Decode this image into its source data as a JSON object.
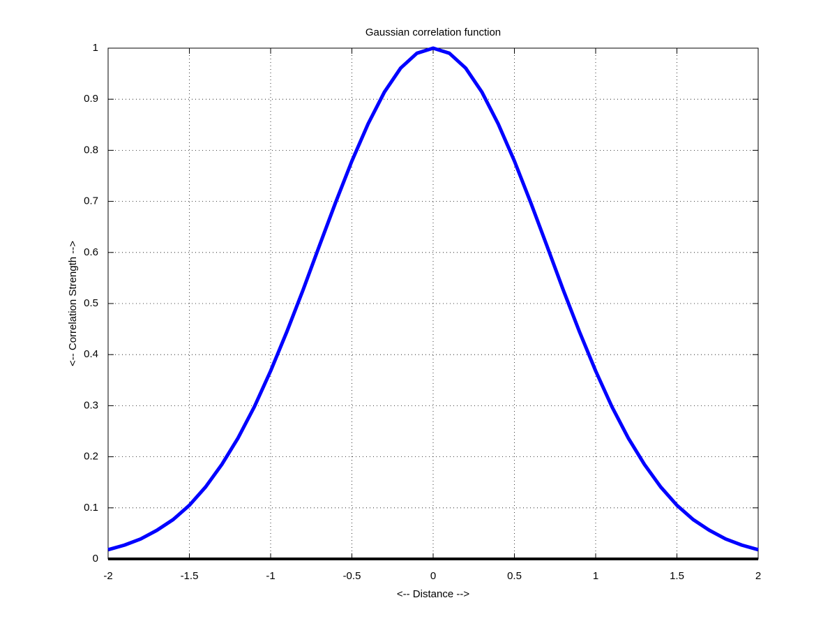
{
  "chart_data": {
    "type": "line",
    "title": "Gaussian correlation function",
    "x_label": "<-- Distance -->",
    "y_label": "<-- Correlation Strength -->",
    "x": [
      -2,
      -1.9,
      -1.8,
      -1.7,
      -1.6,
      -1.5,
      -1.4,
      -1.3,
      -1.2,
      -1.1,
      -1,
      -0.9,
      -0.8,
      -0.7,
      -0.6,
      -0.5,
      -0.4,
      -0.3,
      -0.2,
      -0.1,
      0,
      0.1,
      0.2,
      0.3,
      0.4,
      0.5,
      0.6,
      0.7,
      0.8,
      0.9,
      1,
      1.1,
      1.2,
      1.3,
      1.4,
      1.5,
      1.6,
      1.7,
      1.8,
      1.9,
      2
    ],
    "series": [
      {
        "color": "#0000ff",
        "values": [
          0.018,
          0.027,
          0.039,
          0.056,
          0.077,
          0.105,
          0.141,
          0.185,
          0.237,
          0.298,
          0.368,
          0.445,
          0.527,
          0.613,
          0.698,
          0.779,
          0.852,
          0.914,
          0.961,
          0.99,
          1,
          0.99,
          0.961,
          0.914,
          0.852,
          0.779,
          0.698,
          0.613,
          0.527,
          0.445,
          0.368,
          0.298,
          0.237,
          0.185,
          0.141,
          0.105,
          0.077,
          0.056,
          0.039,
          0.027,
          0.018
        ]
      }
    ],
    "xlim": [
      -2,
      2
    ],
    "xticks": [
      -2,
      -1.5,
      -1,
      -0.5,
      0,
      0.5,
      1,
      1.5,
      2
    ],
    "ylim": [
      0,
      1
    ],
    "yticks": [
      0,
      0.1,
      0.2,
      0.3,
      0.4,
      0.5,
      0.6,
      0.7,
      0.8,
      0.9,
      1
    ],
    "grid": true
  }
}
